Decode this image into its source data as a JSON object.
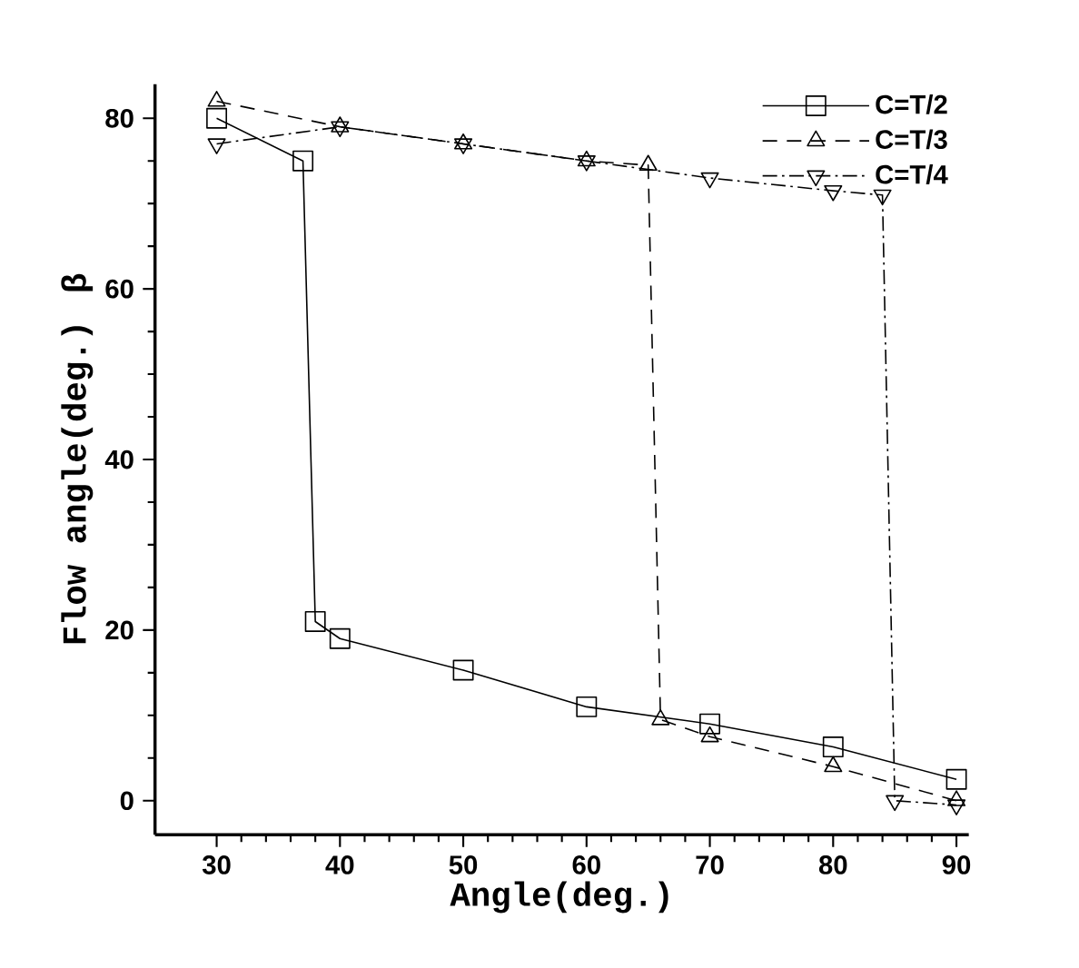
{
  "chart_data": {
    "type": "line",
    "xlabel": "Angle(deg.)",
    "ylabel": "Flow angle(deg.) β",
    "xlim": [
      25,
      91
    ],
    "ylim": [
      -4,
      84
    ],
    "xticks": [
      30,
      40,
      50,
      60,
      70,
      80,
      90
    ],
    "yticks": [
      0,
      20,
      40,
      60,
      80
    ],
    "grid": false,
    "legend": "top right",
    "series": [
      {
        "name": "C=T/2",
        "color": "#000000",
        "marker": "square",
        "line_style": "solid",
        "x": [
          30,
          37,
          38,
          40,
          50,
          60,
          70,
          80,
          90
        ],
        "values": [
          80,
          75,
          21,
          19,
          15.3,
          11,
          9,
          6.3,
          2.5
        ]
      },
      {
        "name": "C=T/3",
        "color": "#000000",
        "marker": "triangle",
        "line_style": "dashed",
        "x": [
          30,
          40,
          50,
          60,
          65,
          66,
          70,
          80,
          90
        ],
        "values": [
          82,
          79,
          77,
          75,
          74.5,
          9.5,
          7.5,
          4,
          0
        ]
      },
      {
        "name": "C=T/4",
        "color": "#000000",
        "marker": "triangle-down",
        "line_style": "dashdotted",
        "x": [
          30,
          40,
          50,
          60,
          70,
          80,
          84,
          85,
          90
        ],
        "values": [
          77,
          79,
          77,
          75,
          73,
          71.5,
          71,
          0,
          -0.5
        ]
      }
    ]
  }
}
